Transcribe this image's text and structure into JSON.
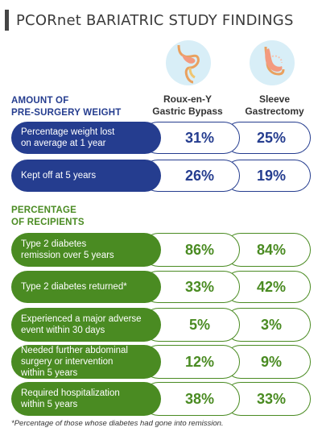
{
  "title": "PCORnet BARIATRIC STUDY FINDINGS",
  "columns": {
    "col1": "Roux-en-Y\nGastric Bypass",
    "col2": "Sleeve\nGastrectomy"
  },
  "icons": {
    "col1_icon": "stomach-bypass-icon",
    "col2_icon": "stomach-sleeve-icon"
  },
  "sections": [
    {
      "heading": "AMOUNT OF\nPRE-SURGERY WEIGHT",
      "color": "#253d8f",
      "rows": [
        {
          "label": "Percentage weight lost\non average at 1 year",
          "roux": "31%",
          "sleeve": "25%"
        },
        {
          "label": "Kept off at 5 years",
          "roux": "26%",
          "sleeve": "19%"
        }
      ]
    },
    {
      "heading": "PERCENTAGE\nOF RECIPIENTS",
      "color": "#4a8b22",
      "rows": [
        {
          "label": "Type 2 diabetes\nremission over 5 years",
          "roux": "86%",
          "sleeve": "84%"
        },
        {
          "label": "Type 2 diabetes returned*",
          "roux": "33%",
          "sleeve": "42%"
        },
        {
          "label": "Experienced a major adverse\nevent within 30 days",
          "roux": "5%",
          "sleeve": "3%"
        },
        {
          "label": "Needed further abdominal\nsurgery or intervention\nwithin 5 years",
          "roux": "12%",
          "sleeve": "9%"
        },
        {
          "label": "Required hospitalization\nwithin 5 years",
          "roux": "38%",
          "sleeve": "33%"
        }
      ]
    }
  ],
  "footnote": "*Percentage of those whose diabetes had gone into remission."
}
